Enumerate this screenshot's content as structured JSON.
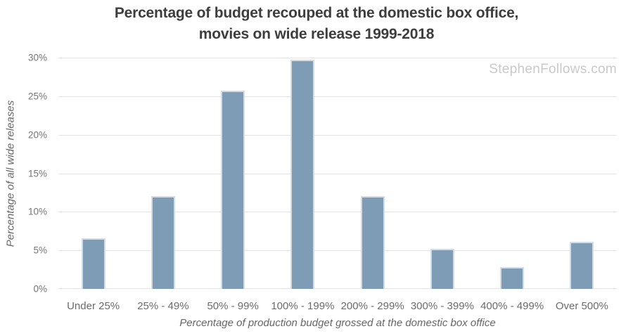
{
  "branding": {
    "watermark": "StephenFollows.com",
    "watermark_color": "#c9c9c9"
  },
  "chart_data": {
    "type": "bar",
    "title": "Percentage of budget recouped at the domestic box office, movies on wide release 1999-2018",
    "title_line1": "Percentage of budget recouped at the domestic box office,",
    "title_line2": "movies on wide release 1999-2018",
    "categories": [
      "Under 25%",
      "25% - 49%",
      "50% - 99%",
      "100% - 199%",
      "200% - 299%",
      "300% - 399%",
      "400% - 499%",
      "Over 500%"
    ],
    "values": [
      6.6,
      12.0,
      25.7,
      29.7,
      12.0,
      5.2,
      2.8,
      6.1
    ],
    "xlabel": "Percentage of production budget grossed at the domestic box office",
    "ylabel": "Percentage of all wide releases",
    "ylim": [
      0,
      30
    ],
    "y_tick_values": [
      30,
      25,
      20,
      15,
      10,
      5,
      0
    ],
    "y_tick_labels": [
      "30%",
      "25%",
      "20%",
      "15%",
      "10%",
      "5%",
      "0%"
    ],
    "grid": "horizontal",
    "legend": "none",
    "colors": {
      "bar_fill": "#7e9cb5",
      "bar_border": "#d2dce4",
      "gridline": "#e3e3e3",
      "title_text": "#3d3d3d",
      "axis_text": "#757575",
      "background": "#ffffff"
    }
  }
}
